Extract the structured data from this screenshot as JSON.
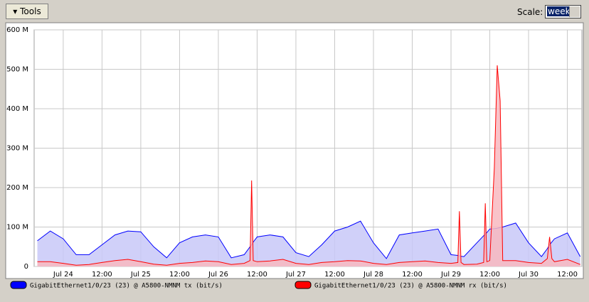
{
  "toolbar": {
    "tools_button": "Tools",
    "scale_label": "Scale:",
    "scale_value": "week"
  },
  "chart_data": {
    "type": "area",
    "x": [
      -8,
      -4,
      0,
      4,
      8,
      12,
      16,
      20,
      24,
      28,
      32,
      36,
      40,
      44,
      48,
      52,
      56,
      57.8,
      58.3,
      58.8,
      60,
      64,
      68,
      72,
      76,
      80,
      84,
      88,
      92,
      96,
      100,
      104,
      108,
      112,
      116,
      120,
      122.1,
      122.6,
      123.1,
      124,
      128,
      130.1,
      130.6,
      131.1,
      132,
      133.4,
      134.3,
      135.2,
      136,
      140,
      144,
      148,
      149.8,
      150.5,
      151.2,
      152,
      156,
      160
    ],
    "series": [
      {
        "name": "GigabitEthernet1/0/23 (23) @ A5800-NMNM tx (bit/s)",
        "color": "#0000ff",
        "fill": "#c8c8f8",
        "values": [
          65,
          90,
          70,
          30,
          30,
          55,
          80,
          90,
          88,
          50,
          22,
          60,
          75,
          80,
          75,
          22,
          30,
          50,
          55,
          62,
          75,
          80,
          75,
          35,
          25,
          55,
          90,
          100,
          115,
          60,
          20,
          80,
          85,
          90,
          95,
          30,
          28,
          27,
          26,
          25,
          60,
          78,
          82,
          86,
          95,
          96,
          97,
          99,
          100,
          110,
          60,
          25,
          45,
          55,
          62,
          70,
          85,
          25
        ]
      },
      {
        "name": "GigabitEthernet1/0/23 (23) @ A5800-NMNM rx (bit/s)",
        "color": "#ff0000",
        "fill": "#f8b8c0",
        "values": [
          12,
          12,
          8,
          3,
          5,
          10,
          15,
          18,
          12,
          6,
          3,
          8,
          10,
          14,
          12,
          5,
          8,
          15,
          218,
          15,
          12,
          14,
          18,
          8,
          5,
          10,
          12,
          15,
          14,
          8,
          5,
          10,
          12,
          14,
          10,
          8,
          10,
          140,
          10,
          5,
          6,
          10,
          160,
          12,
          15,
          250,
          510,
          420,
          15,
          15,
          10,
          8,
          20,
          75,
          20,
          12,
          18,
          5
        ]
      }
    ],
    "xlim": [
      -9,
      160.5
    ],
    "xticks": [
      {
        "value": 0,
        "label": "Jul 24"
      },
      {
        "value": 12,
        "label": "12:00"
      },
      {
        "value": 24,
        "label": "Jul 25"
      },
      {
        "value": 36,
        "label": "12:00"
      },
      {
        "value": 48,
        "label": "Jul 26"
      },
      {
        "value": 60,
        "label": "12:00"
      },
      {
        "value": 72,
        "label": "Jul 27"
      },
      {
        "value": 84,
        "label": "12:00"
      },
      {
        "value": 96,
        "label": "Jul 28"
      },
      {
        "value": 108,
        "label": "12:00"
      },
      {
        "value": 120,
        "label": "Jul 29"
      },
      {
        "value": 132,
        "label": "12:00"
      },
      {
        "value": 144,
        "label": "Jul 30"
      },
      {
        "value": 156,
        "label": "12:00"
      }
    ],
    "ylim": [
      0,
      600
    ],
    "yticks": [
      0,
      {
        "value": 100,
        "label": "100 M"
      },
      {
        "value": 200,
        "label": "200 M"
      },
      {
        "value": 300,
        "label": "300 M"
      },
      {
        "value": 400,
        "label": "400 M"
      },
      {
        "value": 500,
        "label": "500 M"
      },
      {
        "value": 600,
        "label": "600 M"
      }
    ],
    "grid": true
  }
}
